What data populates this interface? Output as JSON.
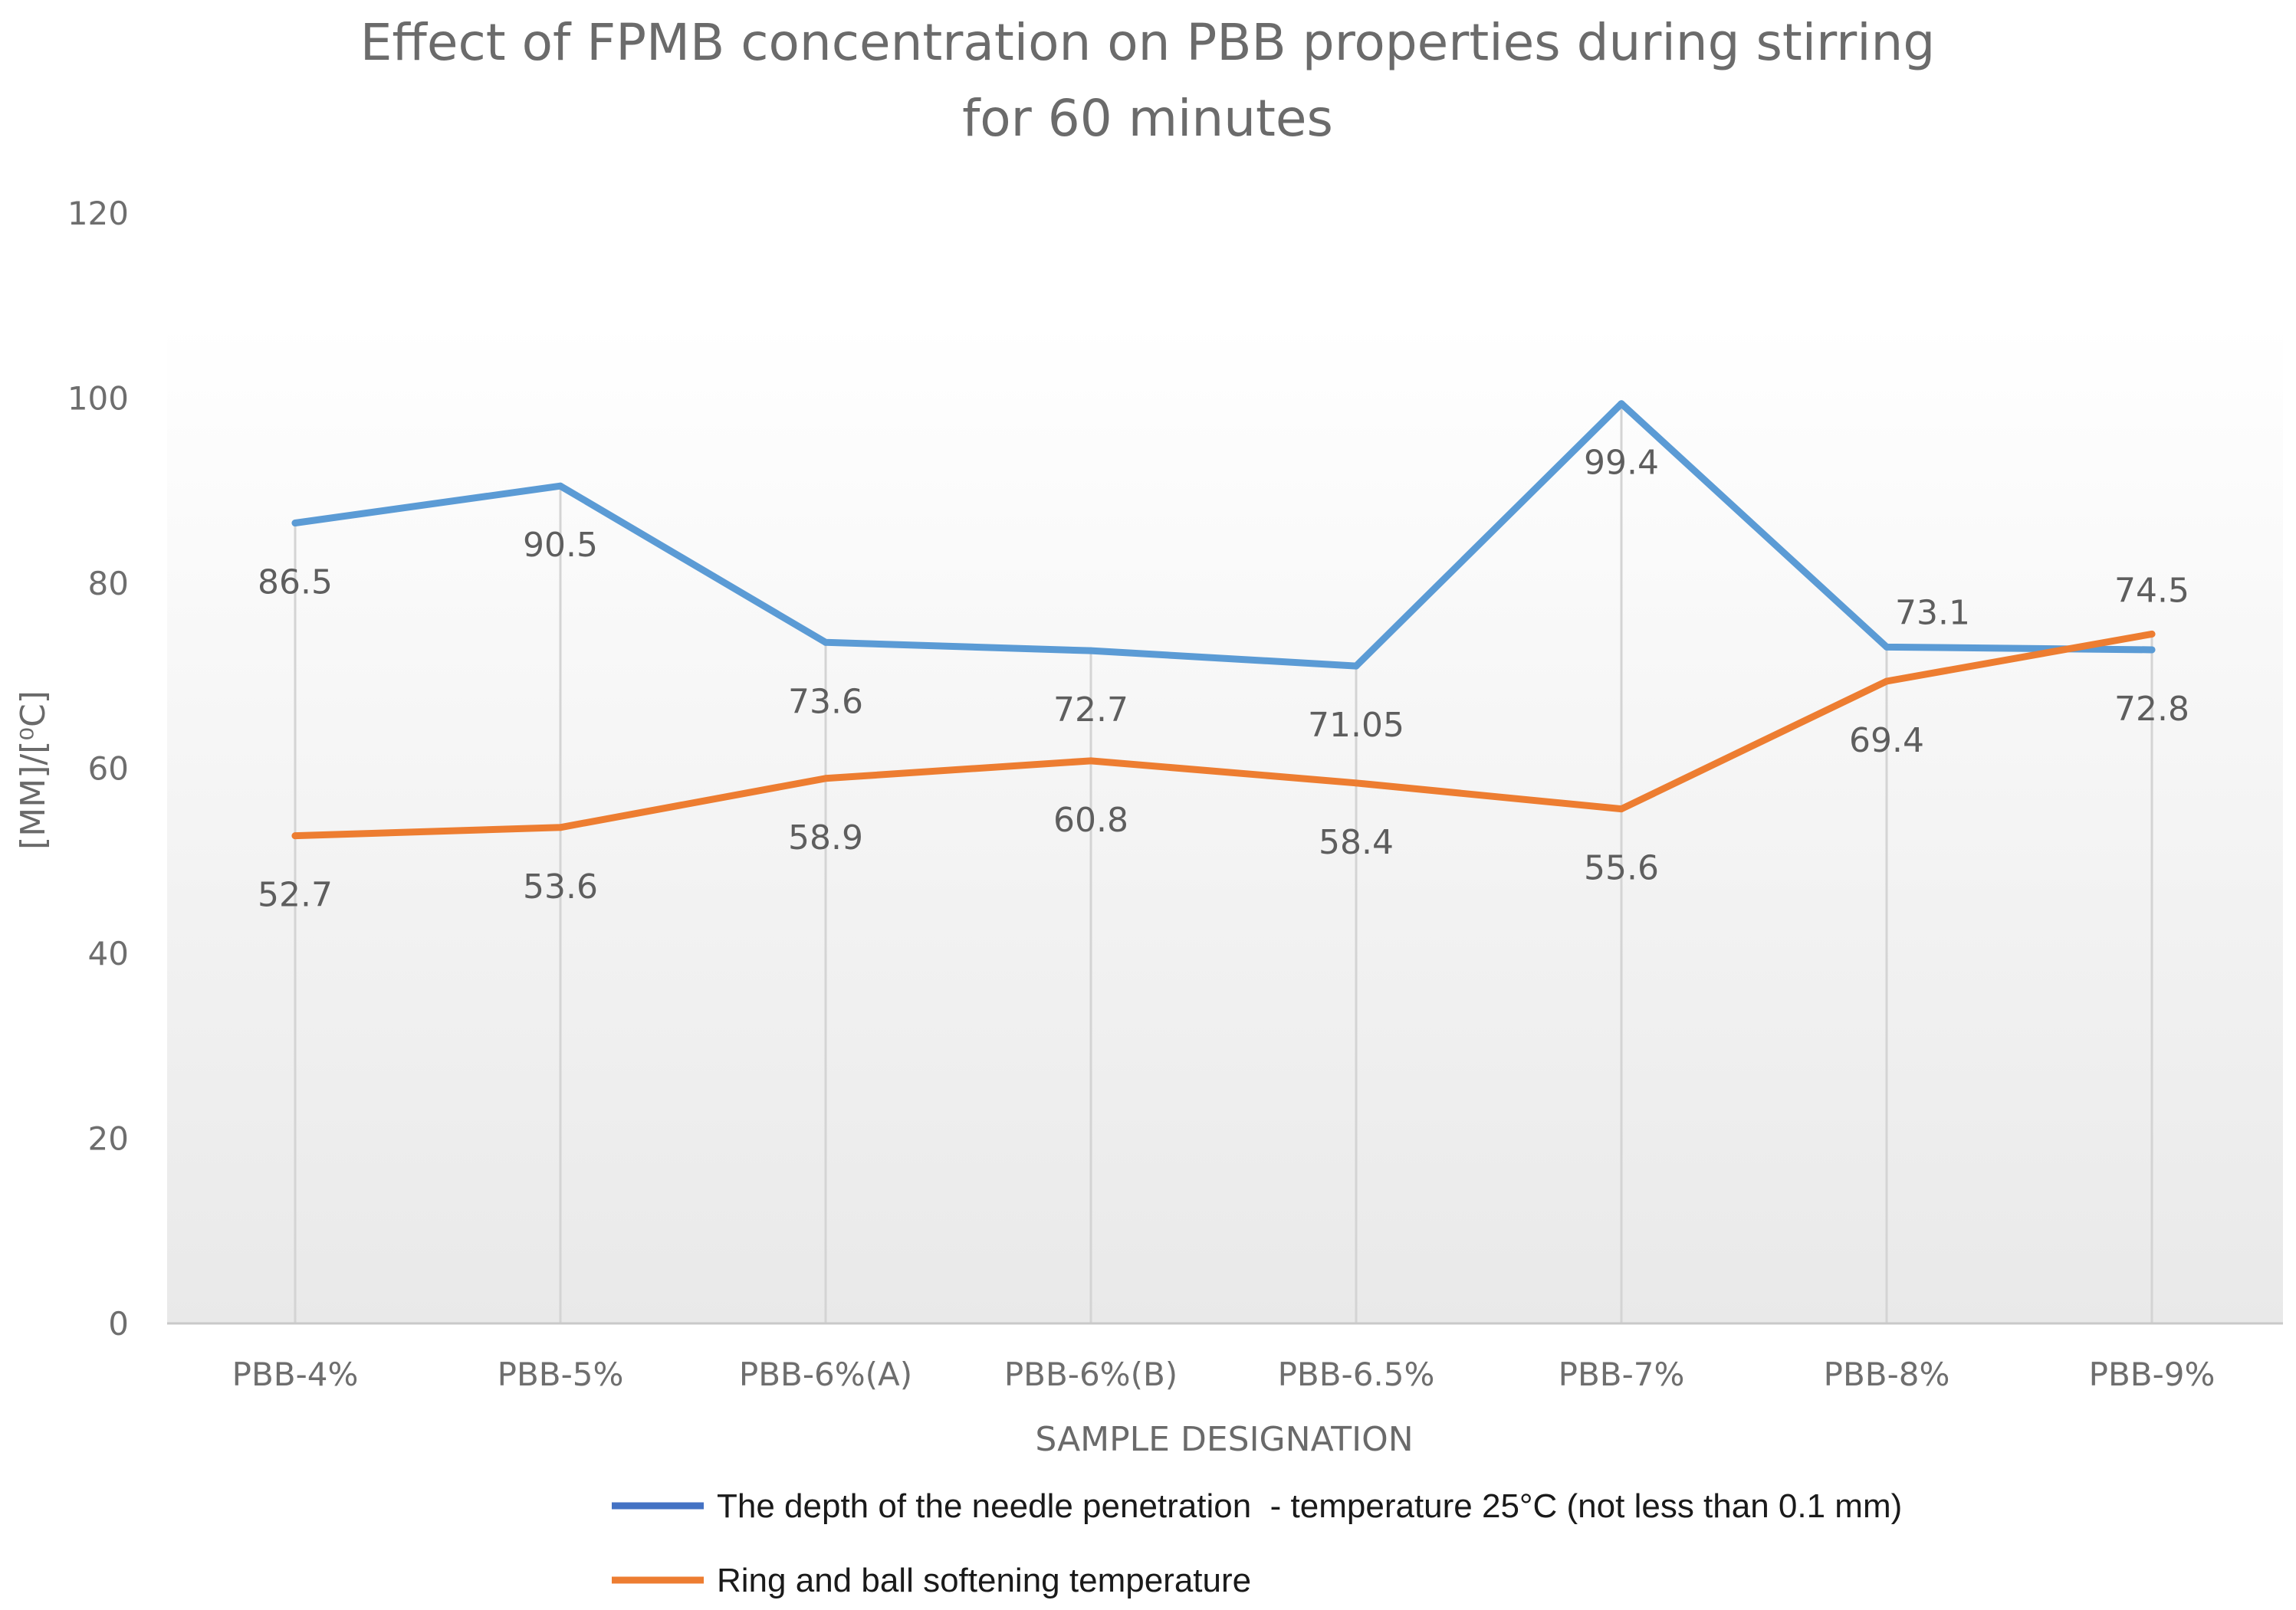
{
  "chart_data": {
    "type": "line",
    "title_lines": [
      "Effect of FPMB concentration on PBB properties during stirring",
      "for 60 minutes"
    ],
    "xlabel": "SAMPLE DESIGNATION",
    "ylabel": "[MM]/[⁰C]",
    "ylim": [
      0,
      120
    ],
    "yticks": [
      "0",
      "20",
      "40",
      "60",
      "80",
      "100",
      "120"
    ],
    "categories": [
      "PBB-4%",
      "PBB-5%",
      "PBB-6%(A)",
      "PBB-6%(B)",
      "PBB-6.5%",
      "PBB-7%",
      "PBB-8%",
      "PBB-9%"
    ],
    "series": [
      {
        "name": "The depth of the needle penetration  - temperature 25°C (not less than 0.1 mm)",
        "color": "#5b9bd5",
        "legend_color": "#4472c4",
        "values": [
          86.5,
          90.5,
          73.6,
          72.7,
          71.05,
          99.4,
          73.1,
          72.8
        ],
        "labels": [
          "86.5",
          "90.5",
          "73.6",
          "72.7",
          "71.05",
          "99.4",
          "73.1",
          "72.8"
        ]
      },
      {
        "name": "Ring and ball softening temperature",
        "color": "#ed7d31",
        "legend_color": "#ed7d31",
        "values": [
          52.7,
          53.6,
          58.9,
          60.8,
          58.4,
          55.6,
          69.4,
          74.5
        ],
        "labels": [
          "52.7",
          "53.6",
          "58.9",
          "60.8",
          "58.4",
          "55.6",
          "69.4",
          "74.5"
        ]
      }
    ],
    "grid": false,
    "legend_position": "bottom"
  }
}
